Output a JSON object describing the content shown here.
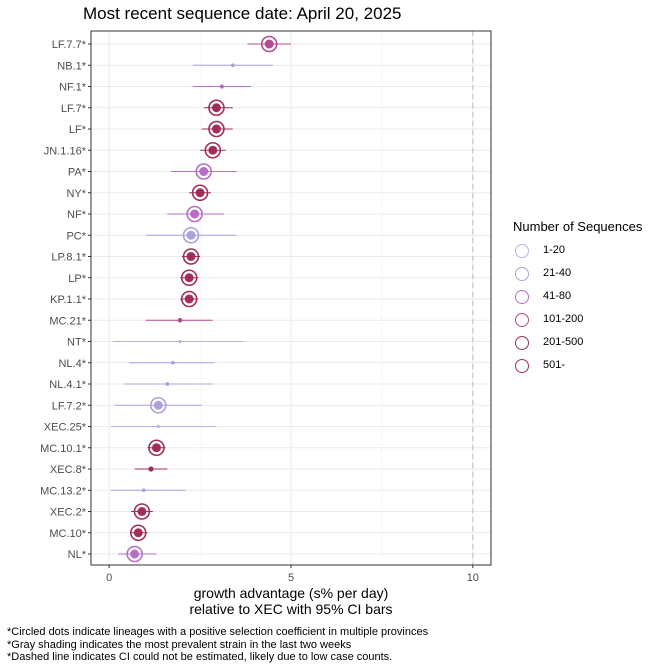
{
  "title": "Most recent sequence date: April 20, 2025",
  "legend": {
    "title": "Number of Sequences",
    "items": [
      {
        "label": "1-20",
        "color": "#b8b3e6"
      },
      {
        "label": "21-40",
        "color": "#ae9fdd"
      },
      {
        "label": "41-80",
        "color": "#b56fc7"
      },
      {
        "label": "101-200",
        "color": "#b04d91"
      },
      {
        "label": "201-500",
        "color": "#9c2f61"
      },
      {
        "label": "501-",
        "color": "#a12d5b"
      }
    ]
  },
  "footnotes": [
    "*Circled dots indicate lineages with a positive selection coefficient in multiple provinces",
    "*Gray shading indicates the most prevalent strain in the last two weeks",
    "*Dashed line indicates CI could not be estimated, likely due to low case counts."
  ],
  "chart_data": {
    "type": "scatter",
    "title": "Most recent sequence date: April 20, 2025",
    "xlabel": "growth advantage (s% per day)\nrelative to  XEC  with 95% CI bars",
    "ylabel": "",
    "xlim": [
      -0.5,
      10.5
    ],
    "xticks": [
      0,
      5,
      10
    ],
    "reference_line": {
      "x": 10,
      "style": "dashed"
    },
    "grid": true,
    "legend_position": "right",
    "points": [
      {
        "lineage": "LF.7.7*",
        "x": 4.4,
        "lo": 3.8,
        "hi": 5.0,
        "bin": 3,
        "circled": true
      },
      {
        "lineage": "NB.1*",
        "x": 3.4,
        "lo": 2.3,
        "hi": 4.5,
        "bin": 1,
        "circled": false
      },
      {
        "lineage": "NF.1*",
        "x": 3.1,
        "lo": 2.3,
        "hi": 3.9,
        "bin": 2,
        "circled": false
      },
      {
        "lineage": "LF.7*",
        "x": 2.95,
        "lo": 2.6,
        "hi": 3.4,
        "bin": 5,
        "circled": true
      },
      {
        "lineage": "LF*",
        "x": 2.95,
        "lo": 2.55,
        "hi": 3.4,
        "bin": 5,
        "circled": true
      },
      {
        "lineage": "JN.1.16*",
        "x": 2.85,
        "lo": 2.5,
        "hi": 3.2,
        "bin": 5,
        "circled": true
      },
      {
        "lineage": "PA*",
        "x": 2.6,
        "lo": 1.7,
        "hi": 3.5,
        "bin": 2,
        "circled": true
      },
      {
        "lineage": "NY*",
        "x": 2.5,
        "lo": 2.2,
        "hi": 2.8,
        "bin": 5,
        "circled": true
      },
      {
        "lineage": "NF*",
        "x": 2.35,
        "lo": 1.6,
        "hi": 3.15,
        "bin": 2,
        "circled": true
      },
      {
        "lineage": "PC*",
        "x": 2.25,
        "lo": 1.0,
        "hi": 3.5,
        "bin": 1,
        "circled": true
      },
      {
        "lineage": "LP.8.1*",
        "x": 2.25,
        "lo": 2.0,
        "hi": 2.5,
        "bin": 5,
        "circled": true
      },
      {
        "lineage": "LP*",
        "x": 2.2,
        "lo": 1.95,
        "hi": 2.45,
        "bin": 5,
        "circled": true
      },
      {
        "lineage": "KP.1.1*",
        "x": 2.2,
        "lo": 1.95,
        "hi": 2.45,
        "bin": 5,
        "circled": true
      },
      {
        "lineage": "MC.21*",
        "x": 1.95,
        "lo": 1.0,
        "hi": 2.85,
        "bin": 3,
        "circled": false
      },
      {
        "lineage": "NT*",
        "x": 1.95,
        "lo": 0.1,
        "hi": 3.7,
        "bin": 0,
        "circled": false
      },
      {
        "lineage": "NL.4*",
        "x": 1.75,
        "lo": 0.55,
        "hi": 2.9,
        "bin": 1,
        "circled": false
      },
      {
        "lineage": "NL.4.1*",
        "x": 1.6,
        "lo": 0.4,
        "hi": 2.85,
        "bin": 1,
        "circled": false
      },
      {
        "lineage": "LF.7.2*",
        "x": 1.35,
        "lo": 0.15,
        "hi": 2.55,
        "bin": 1,
        "circled": true
      },
      {
        "lineage": "XEC.25*",
        "x": 1.35,
        "lo": 0.05,
        "hi": 2.95,
        "bin": 0,
        "circled": false
      },
      {
        "lineage": "MC.10.1*",
        "x": 1.3,
        "lo": 1.05,
        "hi": 1.55,
        "bin": 5,
        "circled": true
      },
      {
        "lineage": "XEC.8*",
        "x": 1.15,
        "lo": 0.7,
        "hi": 1.6,
        "bin": 4,
        "circled": false
      },
      {
        "lineage": "MC.13.2*",
        "x": 0.95,
        "lo": 0.05,
        "hi": 2.1,
        "bin": 1,
        "circled": false
      },
      {
        "lineage": "XEC.2*",
        "x": 0.9,
        "lo": 0.6,
        "hi": 1.2,
        "bin": 5,
        "circled": true
      },
      {
        "lineage": "MC.10*",
        "x": 0.8,
        "lo": 0.6,
        "hi": 1.05,
        "bin": 5,
        "circled": true
      },
      {
        "lineage": "NL*",
        "x": 0.7,
        "lo": 0.25,
        "hi": 1.3,
        "bin": 2,
        "circled": true
      }
    ]
  }
}
